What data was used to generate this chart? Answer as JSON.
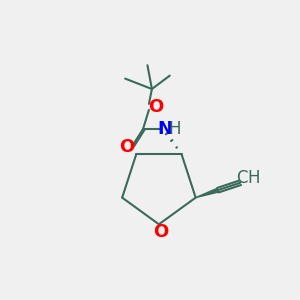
{
  "bg_color": "#f0f0f0",
  "atom_colors": {
    "O": "#ff0000",
    "N": "#0000ff",
    "C": "#3a6b5a",
    "H": "#3a6b5a",
    "black": "#000000"
  },
  "bond_color": "#3a6b5a",
  "font_size_atoms": 13,
  "font_size_small": 11
}
